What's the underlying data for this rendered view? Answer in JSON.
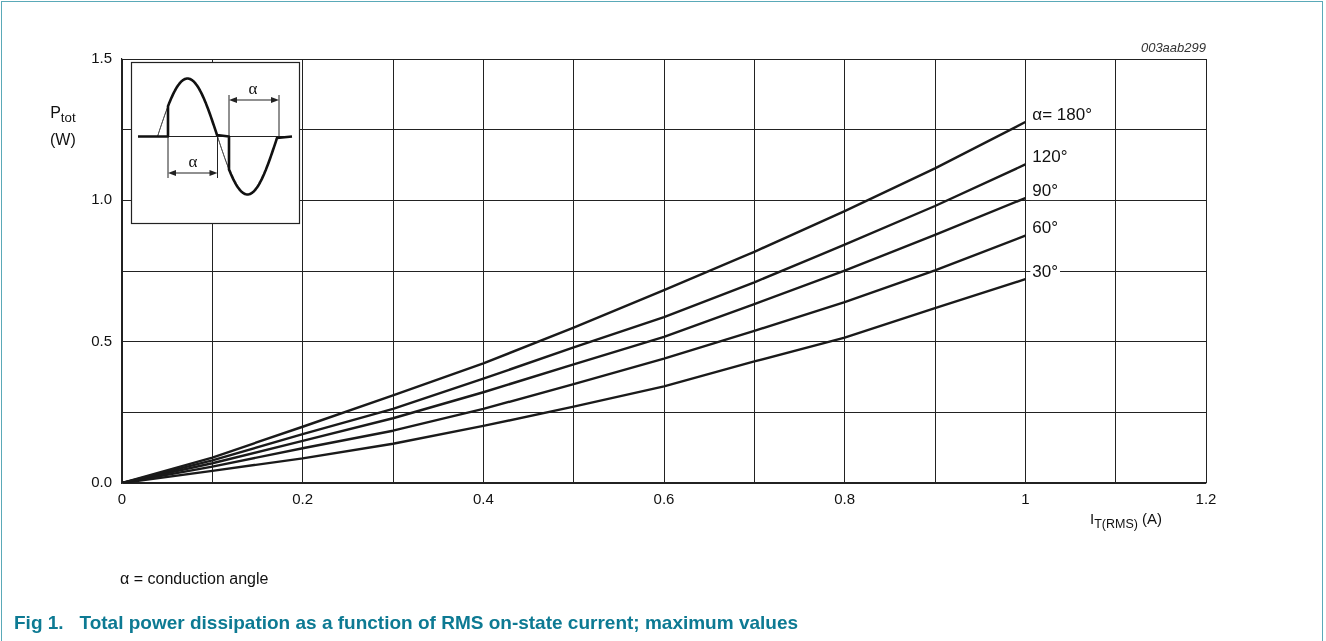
{
  "chart_data": {
    "type": "line",
    "title": "Fig 1.   Total power dissipation as a function of RMS on-state current; maximum values",
    "xlabel": "I$_{T(RMS)}$ (A)",
    "ylabel": "P$_{tot}$\n(W)",
    "annotations": [
      "003aab299",
      "α = conduction angle",
      "α",
      "α"
    ],
    "x": [
      0,
      0.1,
      0.2,
      0.3,
      0.4,
      0.5,
      0.6,
      0.7,
      0.8,
      0.9,
      1.0
    ],
    "series": [
      {
        "name": "α= 180°",
        "color": "#1a1a1a",
        "values": [
          0,
          0.09,
          0.199,
          0.31,
          0.423,
          0.55,
          0.682,
          0.818,
          0.962,
          1.113,
          1.277
        ]
      },
      {
        "name": "120°",
        "color": "#1a1a1a",
        "values": [
          0,
          0.08,
          0.173,
          0.262,
          0.369,
          0.48,
          0.587,
          0.71,
          0.843,
          0.98,
          1.127
        ]
      },
      {
        "name": "90°",
        "color": "#1a1a1a",
        "values": [
          0,
          0.07,
          0.149,
          0.229,
          0.321,
          0.42,
          0.517,
          0.633,
          0.751,
          0.878,
          1.008
        ]
      },
      {
        "name": "60°",
        "color": "#1a1a1a",
        "values": [
          0,
          0.058,
          0.123,
          0.185,
          0.262,
          0.35,
          0.44,
          0.538,
          0.64,
          0.752,
          0.875
        ]
      },
      {
        "name": "30°",
        "color": "#1a1a1a",
        "values": [
          0,
          0.043,
          0.087,
          0.139,
          0.202,
          0.27,
          0.342,
          0.43,
          0.514,
          0.619,
          0.721
        ]
      }
    ],
    "xlim": [
      0,
      1.2
    ],
    "xticks": [
      0,
      {
        "value": 0.1,
        "label": null
      },
      0.2,
      {
        "value": 0.3,
        "label": null
      },
      0.4,
      {
        "value": 0.5,
        "label": null
      },
      0.6,
      {
        "value": 0.7,
        "label": null
      },
      0.8,
      {
        "value": 0.9,
        "label": null
      },
      1,
      {
        "value": 1.1,
        "label": null
      },
      1.2
    ],
    "ylim": [
      0,
      1.5
    ],
    "yticks": [
      {
        "value": 0,
        "label": "0.0"
      },
      {
        "value": 0.25,
        "label": null
      },
      {
        "value": 0.5,
        "label": "0.5"
      },
      {
        "value": 0.75,
        "label": null
      },
      {
        "value": 1.0,
        "label": "1.0"
      },
      {
        "value": 1.25,
        "label": null
      },
      {
        "value": 1.5,
        "label": "1.5"
      }
    ],
    "grid": true,
    "marker": "none",
    "line_style": "solid"
  }
}
